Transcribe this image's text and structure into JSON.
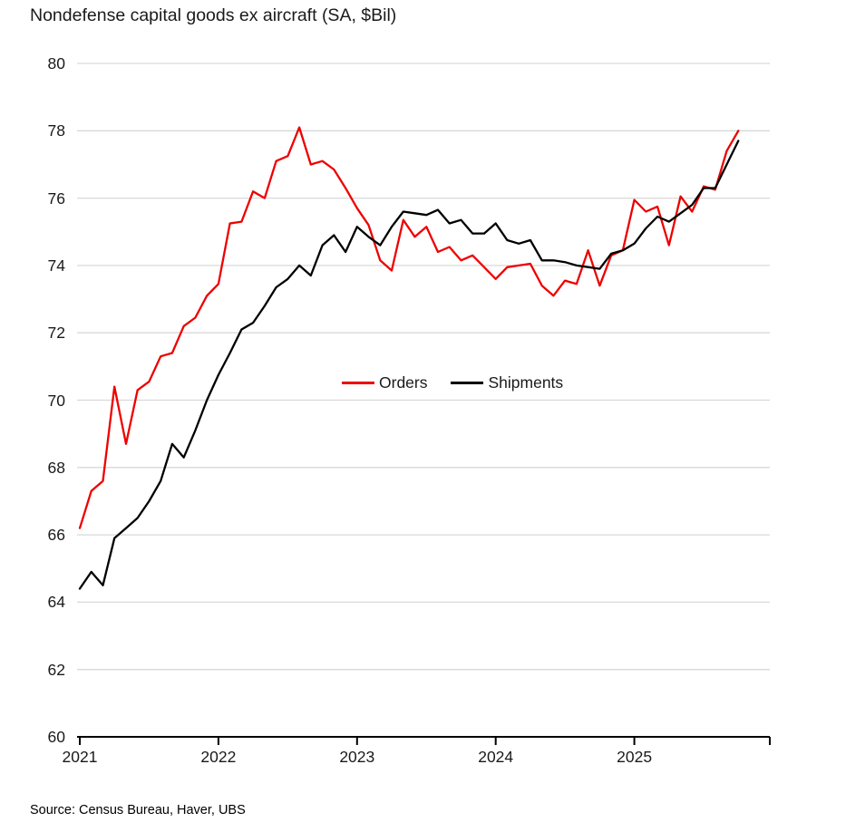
{
  "source_note": "Source: Census Bureau, Haver, UBS",
  "colors": {
    "orders": "#ee0000",
    "shipments": "#000000",
    "gridline": "#d9d9d9",
    "axis": "#000000",
    "text": "#1a1a1a"
  },
  "chart_data": {
    "type": "line",
    "title": "Nondefense capital goods ex aircraft (SA, $Bil)",
    "ylabel": "",
    "xlabel": "",
    "x_start": "2021-01",
    "x_end": "2025-10",
    "frequency": "monthly",
    "xticks": [
      "2021",
      "2022",
      "2023",
      "2024",
      "2025"
    ],
    "yticks": [
      80,
      78,
      76,
      74,
      72,
      70,
      68,
      66,
      64,
      62,
      60
    ],
    "ylim": [
      60,
      80
    ],
    "grid": "horizontal",
    "legend_position": "inside-middle",
    "series": [
      {
        "name": "Orders",
        "key": "orders",
        "color": "#ee0000",
        "values": [
          66.2,
          67.3,
          67.6,
          70.4,
          68.7,
          70.3,
          70.55,
          71.3,
          71.4,
          72.2,
          72.45,
          73.1,
          73.45,
          75.25,
          75.3,
          76.2,
          76.0,
          77.1,
          77.25,
          78.1,
          77.0,
          77.1,
          76.85,
          76.3,
          75.7,
          75.2,
          74.15,
          73.85,
          75.35,
          74.85,
          75.15,
          74.4,
          74.55,
          74.15,
          74.3,
          73.95,
          73.6,
          73.95,
          74.0,
          74.05,
          73.4,
          73.1,
          73.55,
          73.45,
          74.45,
          73.4,
          74.3,
          74.45,
          75.95,
          75.6,
          75.75,
          74.6,
          76.05,
          75.6,
          76.35,
          76.25,
          77.4,
          78.0
        ]
      },
      {
        "name": "Shipments",
        "key": "shipments",
        "color": "#000000",
        "values": [
          64.4,
          64.9,
          64.5,
          65.9,
          66.2,
          66.5,
          67.0,
          67.6,
          68.7,
          68.3,
          69.1,
          70.0,
          70.75,
          71.4,
          72.1,
          72.3,
          72.8,
          73.35,
          73.6,
          74.0,
          73.7,
          74.6,
          74.9,
          74.4,
          75.15,
          74.85,
          74.6,
          75.15,
          75.6,
          75.55,
          75.5,
          75.65,
          75.25,
          75.35,
          74.95,
          74.95,
          75.25,
          74.75,
          74.65,
          74.75,
          74.15,
          74.15,
          74.1,
          74.0,
          73.95,
          73.9,
          74.35,
          74.45,
          74.65,
          75.1,
          75.45,
          75.3,
          75.55,
          75.8,
          76.3,
          76.3,
          77.0,
          77.7
        ]
      }
    ]
  }
}
